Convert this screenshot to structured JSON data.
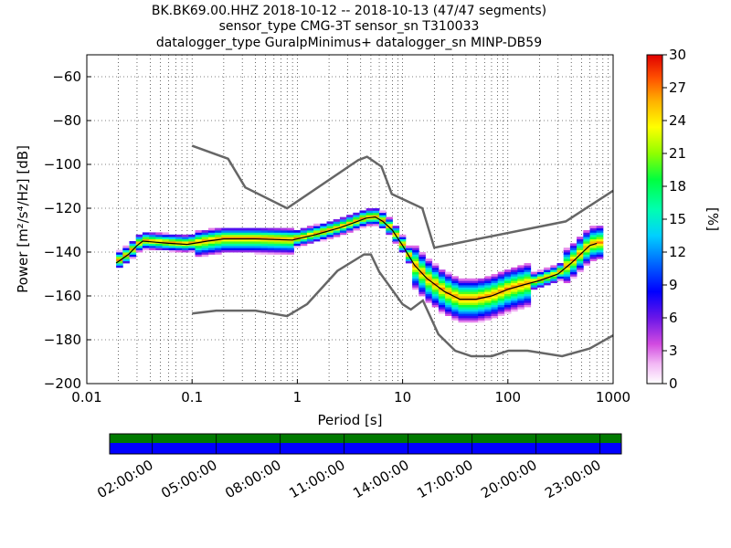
{
  "chart_data": {
    "type": "heatmap",
    "title_lines": [
      "BK.BK69.00.HHZ   2018-10-12 -- 2018-10-13  (47/47 segments)",
      "sensor_type CMG-3T sensor_sn T310033",
      "datalogger_type GuralpMinimus+ datalogger_sn MINP-DB59"
    ],
    "xlabel": "Period [s]",
    "ylabel": "Power [m²/s⁴/Hz] [dB]",
    "xscale": "log",
    "xlim": [
      0.01,
      1000
    ],
    "ylim": [
      -200,
      -50
    ],
    "x_ticks": [
      {
        "v": 0.01,
        "label": "0.01"
      },
      {
        "v": 0.1,
        "label": "0.1"
      },
      {
        "v": 1,
        "label": "1"
      },
      {
        "v": 10,
        "label": "10"
      },
      {
        "v": 100,
        "label": "100"
      },
      {
        "v": 1000,
        "label": "1000"
      }
    ],
    "y_ticks": [
      {
        "v": -60,
        "label": "−60"
      },
      {
        "v": -80,
        "label": "−80"
      },
      {
        "v": -100,
        "label": "−100"
      },
      {
        "v": -120,
        "label": "−120"
      },
      {
        "v": -140,
        "label": "−140"
      },
      {
        "v": -160,
        "label": "−160"
      },
      {
        "v": -180,
        "label": "−180"
      },
      {
        "v": -200,
        "label": "−200"
      }
    ],
    "grid": "dotted",
    "noise_models": [
      {
        "name": "NHNM",
        "points": [
          [
            0.1,
            -91.5
          ],
          [
            0.22,
            -97.4
          ],
          [
            0.32,
            -110.5
          ],
          [
            0.8,
            -120
          ],
          [
            3.8,
            -98
          ],
          [
            4.6,
            -96.5
          ],
          [
            6.3,
            -101
          ],
          [
            7.9,
            -113.5
          ],
          [
            15.4,
            -120
          ],
          [
            20,
            -138
          ],
          [
            354.8,
            -126
          ],
          [
            1000,
            -112
          ]
        ]
      },
      {
        "name": "NLNM",
        "points": [
          [
            0.1,
            -168
          ],
          [
            0.17,
            -166.7
          ],
          [
            0.4,
            -166.7
          ],
          [
            0.8,
            -169.2
          ],
          [
            1.24,
            -163.7
          ],
          [
            2.4,
            -148.6
          ],
          [
            4.3,
            -141.1
          ],
          [
            5,
            -141.1
          ],
          [
            6,
            -149
          ],
          [
            10,
            -163.8
          ],
          [
            12,
            -166.2
          ],
          [
            15.6,
            -162.1
          ],
          [
            21.9,
            -177.5
          ],
          [
            31.6,
            -185
          ],
          [
            45,
            -187.5
          ],
          [
            70,
            -187.5
          ],
          [
            101,
            -185
          ],
          [
            154,
            -185
          ],
          [
            328,
            -187.5
          ],
          [
            600,
            -184
          ],
          [
            1000,
            -178
          ]
        ]
      }
    ],
    "mode_line": {
      "name": "mode",
      "points": [
        [
          0.019,
          -145
        ],
        [
          0.025,
          -141
        ],
        [
          0.03,
          -137
        ],
        [
          0.034,
          -135
        ],
        [
          0.045,
          -135.5
        ],
        [
          0.06,
          -136
        ],
        [
          0.09,
          -136.5
        ],
        [
          0.14,
          -135
        ],
        [
          0.2,
          -134
        ],
        [
          0.4,
          -134
        ],
        [
          0.9,
          -134.5
        ],
        [
          1.5,
          -132
        ],
        [
          2.5,
          -129
        ],
        [
          3.5,
          -126.5
        ],
        [
          4.5,
          -124.5
        ],
        [
          5.5,
          -124
        ],
        [
          6.5,
          -126
        ],
        [
          8,
          -130
        ],
        [
          10,
          -137
        ],
        [
          13,
          -146
        ],
        [
          17,
          -152
        ],
        [
          25,
          -158
        ],
        [
          35,
          -161.5
        ],
        [
          50,
          -161.5
        ],
        [
          70,
          -160
        ],
        [
          100,
          -157
        ],
        [
          140,
          -155
        ],
        [
          200,
          -153
        ],
        [
          300,
          -150
        ],
        [
          400,
          -145
        ],
        [
          600,
          -137
        ],
        [
          700,
          -136
        ]
      ]
    },
    "colorbar": {
      "label": "[%]",
      "range": [
        0,
        30
      ],
      "ticks": [
        0,
        3,
        6,
        9,
        12,
        15,
        18,
        21,
        24,
        27,
        30
      ]
    },
    "time_axis": {
      "labels": [
        "02:00:00",
        "05:00:00",
        "08:00:00",
        "11:00:00",
        "14:00:00",
        "17:00:00",
        "20:00:00",
        "23:00:00"
      ]
    }
  }
}
